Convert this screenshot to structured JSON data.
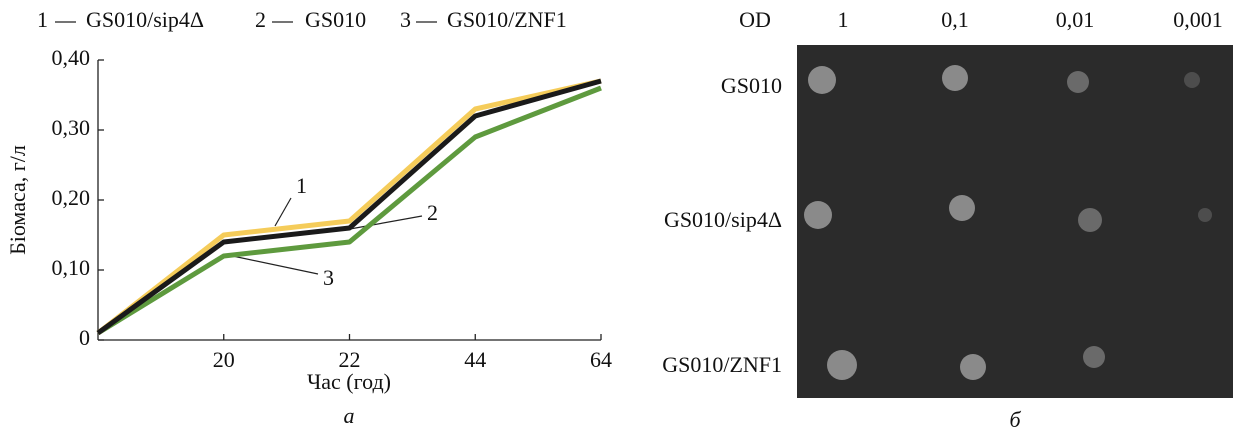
{
  "chart_data": {
    "type": "line",
    "panel_label": "а",
    "xlabel": "Час (год)",
    "ylabel": "Біомаса, г/л",
    "categories": [
      null,
      "20",
      "22",
      "44",
      "64"
    ],
    "series": [
      {
        "name": "GS010/sip4Δ",
        "label": "1",
        "color": "#f5cc5a",
        "values": [
          0.01,
          0.15,
          0.17,
          0.33,
          0.37
        ]
      },
      {
        "name": "GS010",
        "label": "2",
        "color": "#1a1a1a",
        "values": [
          0.01,
          0.14,
          0.16,
          0.32,
          0.37
        ]
      },
      {
        "name": "GS010/ZNF1",
        "label": "3",
        "color": "#5e9a3e",
        "values": [
          0.01,
          0.12,
          0.14,
          0.29,
          0.36
        ]
      }
    ],
    "ylim": [
      0,
      0.4
    ],
    "yticks": [
      0,
      {
        "value": 0.1,
        "label": "0,10"
      },
      {
        "value": 0.2,
        "label": "0,20"
      },
      {
        "value": 0.3,
        "label": "0,30"
      },
      {
        "value": 0.4,
        "label": "0,40"
      }
    ]
  },
  "plate": {
    "panel_label": "б",
    "od_label": "OD",
    "columns": [
      "1",
      "0,1",
      "0,01",
      "0,001"
    ],
    "rows": [
      "GS010",
      "GS010/sip4Δ",
      "GS010/ZNF1"
    ]
  }
}
